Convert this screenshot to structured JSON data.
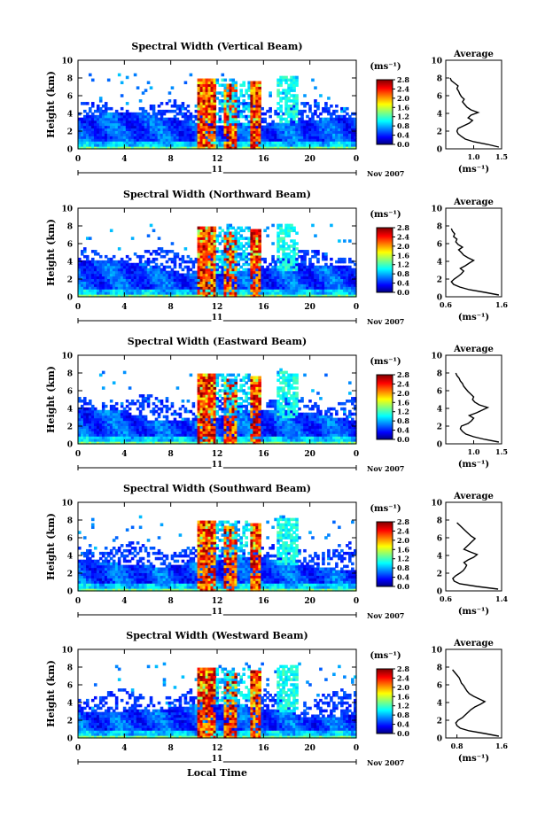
{
  "figure": {
    "x_axis_label": "Local Time",
    "y_axis_label": "Height (km)",
    "units_label": "(ms⁻¹)",
    "date_label": "Nov 2007",
    "day_label": "11",
    "avg_title": "Average"
  },
  "chart_data": [
    {
      "type": "heatmap",
      "title": "Spectral Width (Vertical Beam)",
      "xlabel": "",
      "ylabel": "Height (km)",
      "xlim": [
        0,
        24
      ],
      "ylim": [
        0,
        10
      ],
      "x_ticks": [
        "0",
        "4",
        "8",
        "12",
        "16",
        "20",
        "0"
      ],
      "y_ticks": [
        "0",
        "2",
        "4",
        "6",
        "8",
        "10"
      ],
      "colorbar": {
        "label": "(ms⁻¹)",
        "range": [
          0,
          2.8
        ],
        "ticks": [
          "0.0",
          "0.4",
          "0.8",
          "1.2",
          "1.6",
          "2.0",
          "2.4",
          "2.8"
        ]
      },
      "average_profile": {
        "title": "Average",
        "xlabel": "(ms⁻¹)",
        "xlim": [
          0.5,
          1.5
        ],
        "x_ticks": [
          "1.0",
          "1.5"
        ],
        "y_ticks": [
          "0",
          "2",
          "4",
          "6",
          "8",
          "10"
        ],
        "height": [
          0.2,
          0.5,
          0.8,
          1.1,
          1.4,
          1.7,
          2.0,
          2.3,
          2.6,
          2.9,
          3.2,
          3.5,
          3.8,
          4.1,
          4.4,
          4.7,
          5.0,
          5.3,
          5.6,
          5.9,
          6.2,
          6.5,
          6.8,
          7.1,
          7.4,
          7.7,
          8.0
        ],
        "value": [
          1.45,
          1.25,
          1.0,
          0.85,
          0.78,
          0.72,
          0.7,
          0.72,
          0.82,
          0.92,
          0.98,
          0.9,
          0.95,
          1.08,
          0.95,
          0.88,
          0.84,
          0.8,
          0.83,
          0.78,
          0.75,
          0.73,
          0.7,
          0.72,
          0.66,
          0.6,
          0.58
        ]
      }
    },
    {
      "type": "heatmap",
      "title": "Spectral Width (Northward Beam)",
      "xlabel": "",
      "ylabel": "Height (km)",
      "xlim": [
        0,
        24
      ],
      "ylim": [
        0,
        10
      ],
      "x_ticks": [
        "0",
        "4",
        "8",
        "12",
        "16",
        "20",
        "0"
      ],
      "y_ticks": [
        "0",
        "2",
        "4",
        "6",
        "8",
        "10"
      ],
      "colorbar": {
        "label": "(ms⁻¹)",
        "range": [
          0,
          2.8
        ],
        "ticks": [
          "0.0",
          "0.4",
          "0.8",
          "1.2",
          "1.6",
          "2.0",
          "2.4",
          "2.8"
        ]
      },
      "average_profile": {
        "title": "Average",
        "xlabel": "(ms⁻¹)",
        "xlim": [
          0.6,
          1.6
        ],
        "x_ticks": [
          "0.6",
          "1.6"
        ],
        "y_ticks": [
          "0",
          "2",
          "4",
          "6",
          "8",
          "10"
        ],
        "height": [
          0.2,
          0.5,
          0.8,
          1.1,
          1.4,
          1.7,
          2.0,
          2.3,
          2.6,
          2.9,
          3.2,
          3.5,
          3.8,
          4.1,
          4.4,
          4.7,
          5.0,
          5.3,
          5.6,
          5.9,
          6.2,
          6.5,
          6.8,
          7.1,
          7.4,
          7.7
        ],
        "value": [
          1.55,
          1.3,
          1.02,
          0.85,
          0.74,
          0.7,
          0.75,
          0.82,
          0.88,
          0.92,
          0.86,
          0.95,
          1.02,
          1.1,
          1.0,
          0.92,
          0.88,
          0.83,
          0.9,
          0.82,
          0.78,
          0.8,
          0.74,
          0.76,
          0.72,
          0.7
        ]
      }
    },
    {
      "type": "heatmap",
      "title": "Spectral Width (Eastward Beam)",
      "xlabel": "",
      "ylabel": "Height (km)",
      "xlim": [
        0,
        24
      ],
      "ylim": [
        0,
        10
      ],
      "x_ticks": [
        "0",
        "4",
        "8",
        "12",
        "16",
        "20",
        "0"
      ],
      "y_ticks": [
        "0",
        "2",
        "4",
        "6",
        "8",
        "10"
      ],
      "colorbar": {
        "label": "(ms⁻¹)",
        "range": [
          0,
          2.8
        ],
        "ticks": [
          "0.0",
          "0.4",
          "0.8",
          "1.2",
          "1.6",
          "2.0",
          "2.4",
          "2.8"
        ]
      },
      "average_profile": {
        "title": "Average",
        "xlabel": "(ms⁻¹)",
        "xlim": [
          0.5,
          1.5
        ],
        "x_ticks": [
          "1.0",
          "1.5"
        ],
        "y_ticks": [
          "0",
          "2",
          "4",
          "6",
          "8",
          "10"
        ],
        "height": [
          0.2,
          0.5,
          0.8,
          1.1,
          1.4,
          1.7,
          2.0,
          2.3,
          2.6,
          2.9,
          3.2,
          3.5,
          3.8,
          4.1,
          4.4,
          4.7,
          5.0,
          5.3,
          5.6,
          5.9,
          6.2,
          6.5,
          6.8,
          7.1,
          7.4,
          7.7,
          8.0
        ],
        "value": [
          1.45,
          1.2,
          1.0,
          0.86,
          0.8,
          0.76,
          0.78,
          0.9,
          0.96,
          1.0,
          0.92,
          1.05,
          1.15,
          1.25,
          1.1,
          1.02,
          0.98,
          1.0,
          0.95,
          0.9,
          0.86,
          0.82,
          0.8,
          0.76,
          0.74,
          0.7,
          0.68
        ]
      }
    },
    {
      "type": "heatmap",
      "title": "Spectral Width (Southward Beam)",
      "xlabel": "",
      "ylabel": "Height (km)",
      "xlim": [
        0,
        24
      ],
      "ylim": [
        0,
        10
      ],
      "x_ticks": [
        "0",
        "4",
        "8",
        "12",
        "16",
        "20",
        "0"
      ],
      "y_ticks": [
        "0",
        "2",
        "4",
        "6",
        "8",
        "10"
      ],
      "colorbar": {
        "label": "(ms⁻¹)",
        "range": [
          0,
          2.8
        ],
        "ticks": [
          "0.0",
          "0.4",
          "0.8",
          "1.2",
          "1.6",
          "2.0",
          "2.4",
          "2.8"
        ]
      },
      "average_profile": {
        "title": "Average",
        "xlabel": "(ms⁻¹)",
        "xlim": [
          0.6,
          1.4
        ],
        "x_ticks": [
          "0.6",
          "1.4"
        ],
        "y_ticks": [
          "0",
          "2",
          "4",
          "6",
          "8",
          "10"
        ],
        "height": [
          0.2,
          0.5,
          0.8,
          1.1,
          1.4,
          1.7,
          2.0,
          2.3,
          2.6,
          2.9,
          3.2,
          3.5,
          3.8,
          4.1,
          4.4,
          4.7,
          5.0,
          5.3,
          5.6,
          5.9,
          6.2,
          6.5,
          6.8,
          7.1,
          7.4,
          7.7
        ],
        "value": [
          1.35,
          1.05,
          0.8,
          0.72,
          0.7,
          0.74,
          0.8,
          0.85,
          0.88,
          0.9,
          0.86,
          0.92,
          1.0,
          1.05,
          0.95,
          0.86,
          0.9,
          0.94,
          0.98,
          1.02,
          0.96,
          0.92,
          0.88,
          0.84,
          0.8,
          0.76
        ]
      }
    },
    {
      "type": "heatmap",
      "title": "Spectral Width (Westward Beam)",
      "xlabel": "Local Time",
      "ylabel": "Height (km)",
      "xlim": [
        0,
        24
      ],
      "ylim": [
        0,
        10
      ],
      "x_ticks": [
        "0",
        "4",
        "8",
        "12",
        "16",
        "20",
        "0"
      ],
      "y_ticks": [
        "0",
        "2",
        "4",
        "6",
        "8",
        "10"
      ],
      "colorbar": {
        "label": "(ms⁻¹)",
        "range": [
          0,
          2.8
        ],
        "ticks": [
          "0.0",
          "0.4",
          "0.8",
          "1.2",
          "1.6",
          "2.0",
          "2.4",
          "2.8"
        ]
      },
      "average_profile": {
        "title": "Average",
        "xlabel": "(ms⁻¹)",
        "xlim": [
          0.6,
          1.6
        ],
        "x_ticks": [
          "0.8",
          "1.6"
        ],
        "y_ticks": [
          "0",
          "2",
          "4",
          "6",
          "8",
          "10"
        ],
        "height": [
          0.2,
          0.5,
          0.8,
          1.1,
          1.4,
          1.7,
          2.0,
          2.3,
          2.6,
          2.9,
          3.2,
          3.5,
          3.8,
          4.1,
          4.4,
          4.7,
          5.0,
          5.3,
          5.6,
          5.9,
          6.2,
          6.5,
          6.8,
          7.1,
          7.4,
          7.7
        ],
        "value": [
          1.55,
          1.3,
          1.02,
          0.86,
          0.8,
          0.78,
          0.82,
          0.9,
          0.95,
          1.0,
          1.05,
          1.12,
          1.22,
          1.3,
          1.2,
          1.1,
          1.02,
          0.98,
          0.95,
          0.92,
          0.88,
          0.86,
          0.84,
          0.8,
          0.76,
          0.72
        ]
      }
    }
  ]
}
